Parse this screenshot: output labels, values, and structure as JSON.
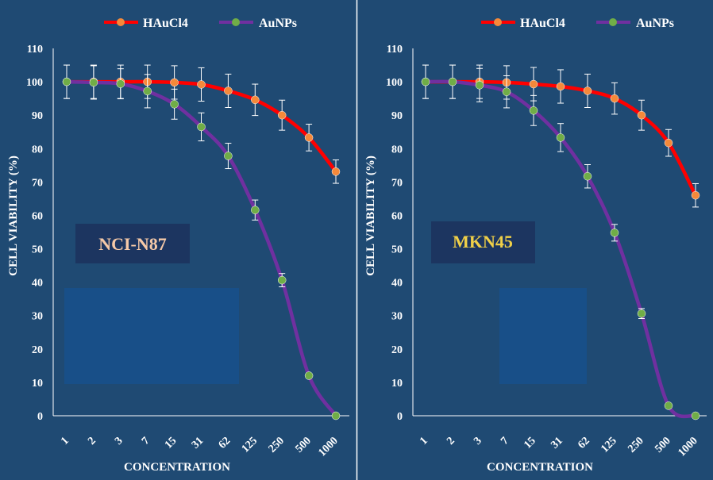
{
  "chart_data": [
    {
      "type": "line",
      "label_box": "NCI-N87",
      "xlabel": "CONCENTRATION",
      "ylabel": "CELL VIABILITY (%)",
      "categories": [
        "1",
        "2",
        "3",
        "7",
        "15",
        "31",
        "62",
        "125",
        "250",
        "500",
        "1000"
      ],
      "ylim": [
        0,
        110
      ],
      "yticks": [
        "0",
        "10",
        "20",
        "30",
        "40",
        "50",
        "60",
        "70",
        "80",
        "90",
        "100",
        "110"
      ],
      "grid": false,
      "legend_position": "top",
      "series": [
        {
          "name": "HAuCl4",
          "line_color": "#ff0000",
          "marker_color": "#f5893a",
          "values": [
            100,
            100,
            100,
            100,
            99.8,
            99.2,
            97.3,
            94.6,
            90,
            83.3,
            73.1
          ],
          "errors": [
            5,
            5,
            5,
            5,
            5,
            5,
            5,
            4.7,
            4.5,
            4,
            3.5
          ]
        },
        {
          "name": "AuNPs",
          "line_color": "#7030a0",
          "marker_color": "#70ad47",
          "values": [
            100,
            99.8,
            99.4,
            97.2,
            93.3,
            86.5,
            77.8,
            61.6,
            40.6,
            12,
            0
          ],
          "errors": [
            5,
            5,
            4.5,
            5,
            4.5,
            4.2,
            3.8,
            3,
            2,
            0,
            0
          ]
        }
      ]
    },
    {
      "type": "line",
      "label_box": "MKN45",
      "xlabel": "CONCENTRATION",
      "ylabel": "CELL VIABILITY (%)",
      "categories": [
        "1",
        "2",
        "3",
        "7",
        "15",
        "31",
        "62",
        "125",
        "250",
        "500",
        "1000"
      ],
      "ylim": [
        0,
        110
      ],
      "yticks": [
        "0",
        "10",
        "20",
        "30",
        "40",
        "50",
        "60",
        "70",
        "80",
        "90",
        "100",
        "110"
      ],
      "grid": false,
      "legend_position": "top",
      "series": [
        {
          "name": "HAuCl4",
          "line_color": "#ff0000",
          "marker_color": "#f5893a",
          "values": [
            100,
            100,
            100,
            99.8,
            99.3,
            98.6,
            97.3,
            95,
            90,
            81.7,
            66
          ],
          "errors": [
            5,
            5,
            5,
            5,
            5,
            5,
            5,
            4.7,
            4.5,
            4,
            3.5
          ]
        },
        {
          "name": "AuNPs",
          "line_color": "#7030a0",
          "marker_color": "#70ad47",
          "values": [
            100,
            100,
            99,
            97,
            91.4,
            83.3,
            71.7,
            54.8,
            30.6,
            3,
            0
          ],
          "errors": [
            5,
            5,
            5,
            4.8,
            4.5,
            4.2,
            3.5,
            2.5,
            1.5,
            0,
            0
          ]
        }
      ]
    }
  ]
}
